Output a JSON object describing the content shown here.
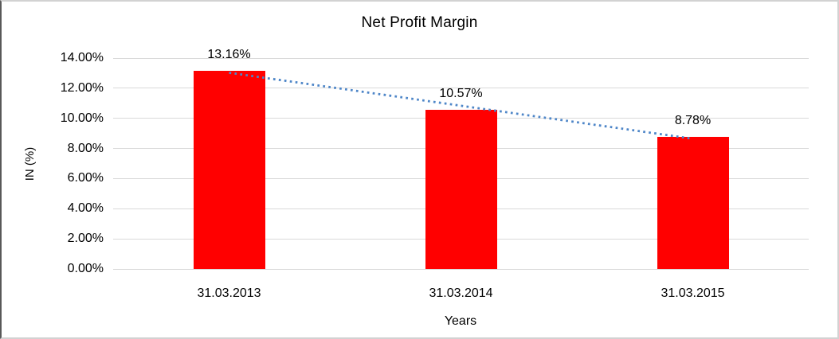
{
  "chart_data": {
    "type": "bar",
    "title": "Net Profit Margin",
    "categories": [
      "31.03.2013",
      "31.03.2014",
      "31.03.2015"
    ],
    "values": [
      13.16,
      10.57,
      8.78
    ],
    "data_labels": [
      "13.16%",
      "10.57%",
      "8.78%"
    ],
    "xlabel": "Years",
    "ylabel": "IN (%)",
    "ylim": [
      0,
      14
    ],
    "ytick_step": 2,
    "ytick_labels": [
      "0.00%",
      "2.00%",
      "4.00%",
      "6.00%",
      "8.00%",
      "10.00%",
      "12.00%",
      "14.00%"
    ],
    "grid": true,
    "legend": "none",
    "bar_color": "#ff0000",
    "gridline_color": "#d9d9d9",
    "trendline": {
      "type": "linear",
      "style": "dotted",
      "color": "#4e86c8"
    }
  }
}
